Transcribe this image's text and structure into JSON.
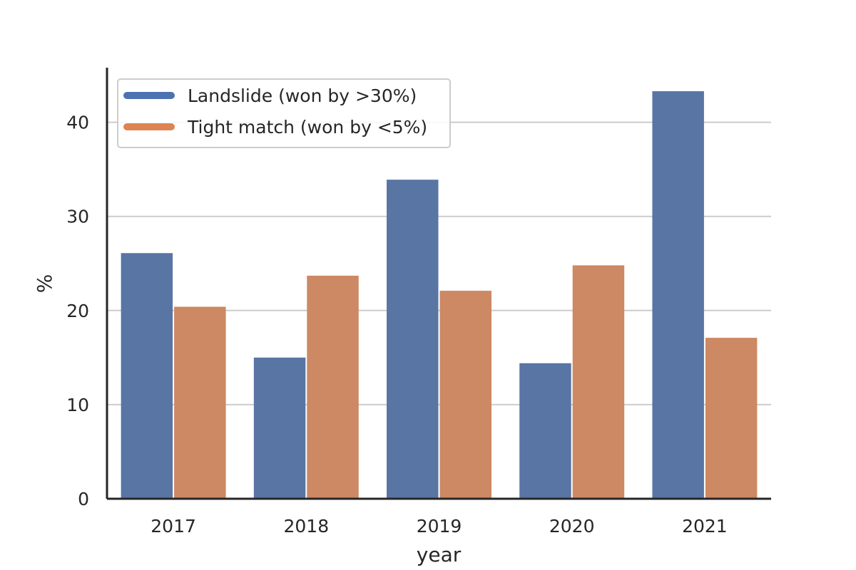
{
  "chart_data": {
    "type": "bar",
    "title": "",
    "xlabel": "year",
    "ylabel": "%",
    "categories": [
      "2017",
      "2018",
      "2019",
      "2020",
      "2021"
    ],
    "series": [
      {
        "name": "Landslide (won by >30%)",
        "color": "#5975a4",
        "values": [
          26.1,
          15.0,
          33.9,
          14.4,
          43.3
        ]
      },
      {
        "name": "Tight match (won by <5%)",
        "color": "#cc8963",
        "values": [
          20.4,
          23.7,
          22.1,
          24.8,
          17.1
        ]
      }
    ],
    "yticks": [
      0,
      10,
      20,
      30,
      40
    ],
    "ylim": [
      0,
      45.8
    ],
    "grid": "horizontal",
    "legend_position": "top-left"
  }
}
